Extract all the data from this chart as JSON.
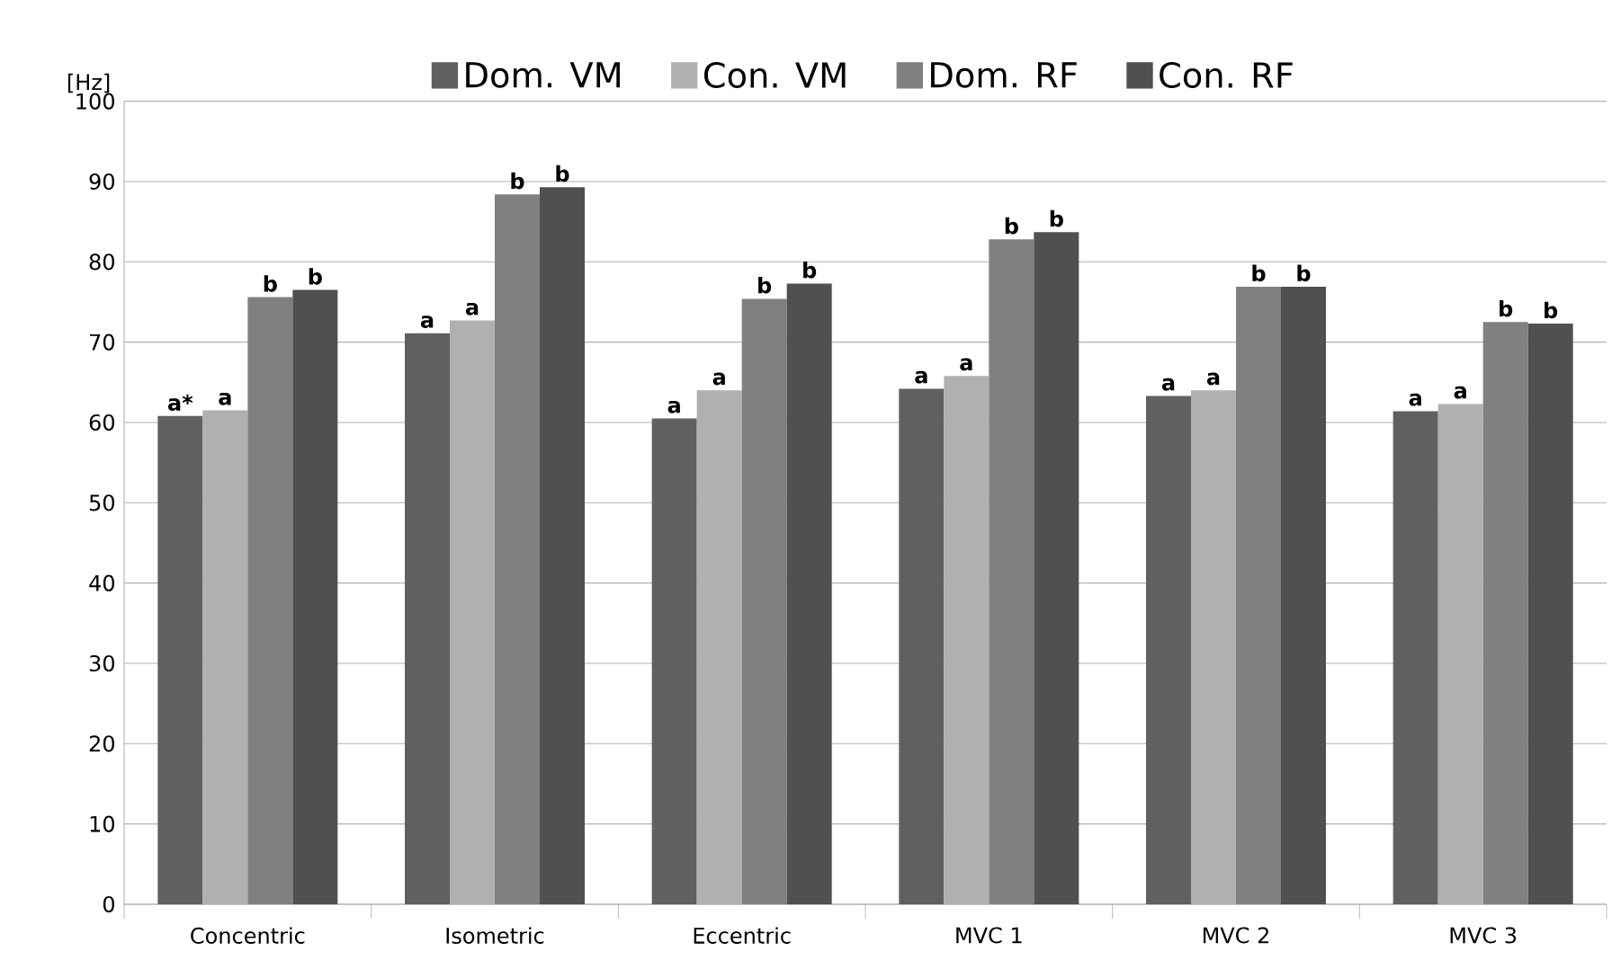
{
  "chart_data": {
    "type": "bar",
    "ylabel": "[Hz]",
    "categories": [
      "Concentric",
      "Isometric",
      "Eccentric",
      "MVC 1",
      "MVC 2",
      "MVC 3"
    ],
    "series": [
      {
        "name": "Dom. VM",
        "color": "#606060",
        "values": [
          60.8,
          71.1,
          60.5,
          64.2,
          63.3,
          61.4
        ],
        "value_labels": [
          "a*",
          "a",
          "a",
          "a",
          "a",
          "a"
        ]
      },
      {
        "name": "Con. VM",
        "color": "#b0b0b0",
        "values": [
          61.5,
          72.7,
          64.0,
          65.8,
          64.0,
          62.3
        ],
        "value_labels": [
          "a",
          "a",
          "a",
          "a",
          "a",
          "a"
        ]
      },
      {
        "name": "Dom. RF",
        "color": "#808080",
        "values": [
          75.6,
          88.4,
          75.4,
          82.8,
          76.9,
          72.5
        ],
        "value_labels": [
          "b",
          "b",
          "b",
          "b",
          "b",
          "b"
        ]
      },
      {
        "name": "Con. RF",
        "color": "#505050",
        "values": [
          76.5,
          89.3,
          77.3,
          83.7,
          76.9,
          72.3
        ],
        "value_labels": [
          "b",
          "b",
          "b",
          "b",
          "b",
          "b"
        ]
      }
    ],
    "ylim": [
      0,
      100
    ],
    "yticks": [
      0,
      10,
      20,
      30,
      40,
      50,
      60,
      70,
      80,
      90,
      100
    ],
    "grid": "y",
    "legend": "top"
  }
}
